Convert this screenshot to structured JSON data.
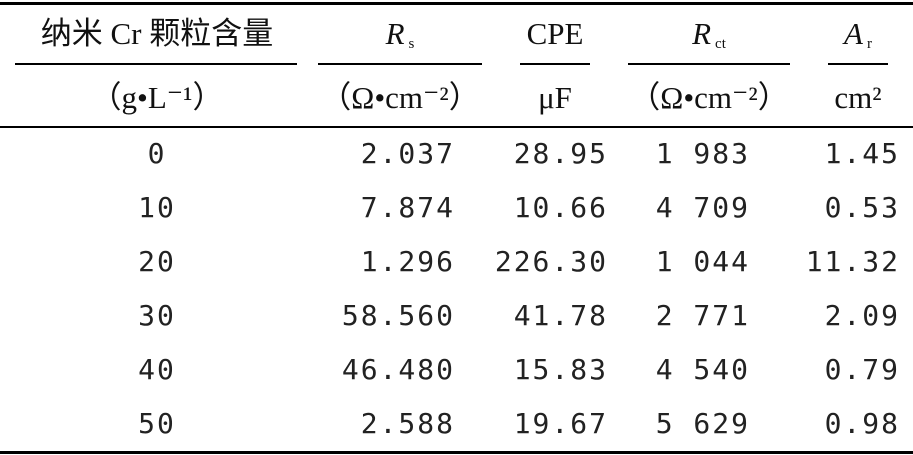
{
  "header": {
    "columns": [
      {
        "label": "纳米 Cr 颗粒含量",
        "unit": "（g•L⁻¹）"
      },
      {
        "symbol": "R",
        "subscript": "s",
        "unit": "（Ω•cm⁻²）"
      },
      {
        "label": "CPE",
        "unit": "μF"
      },
      {
        "symbol": "R",
        "subscript": "ct",
        "unit": "（Ω•cm⁻²）"
      },
      {
        "symbol": "A",
        "subscript": "r",
        "unit": "cm²"
      }
    ]
  },
  "table": {
    "rows": [
      [
        "0",
        "2.037",
        "28.95",
        "1 983",
        "1.45"
      ],
      [
        "10",
        "7.874",
        "10.66",
        "4 709",
        "0.53"
      ],
      [
        "20",
        "1.296",
        "226.30",
        "1 044",
        "11.32"
      ],
      [
        "30",
        "58.560",
        "41.78",
        "2 771",
        "2.09"
      ],
      [
        "40",
        "46.480",
        "15.83",
        "4 540",
        "0.79"
      ],
      [
        "50",
        "2.588",
        "19.67",
        "5 629",
        "0.98"
      ]
    ]
  }
}
